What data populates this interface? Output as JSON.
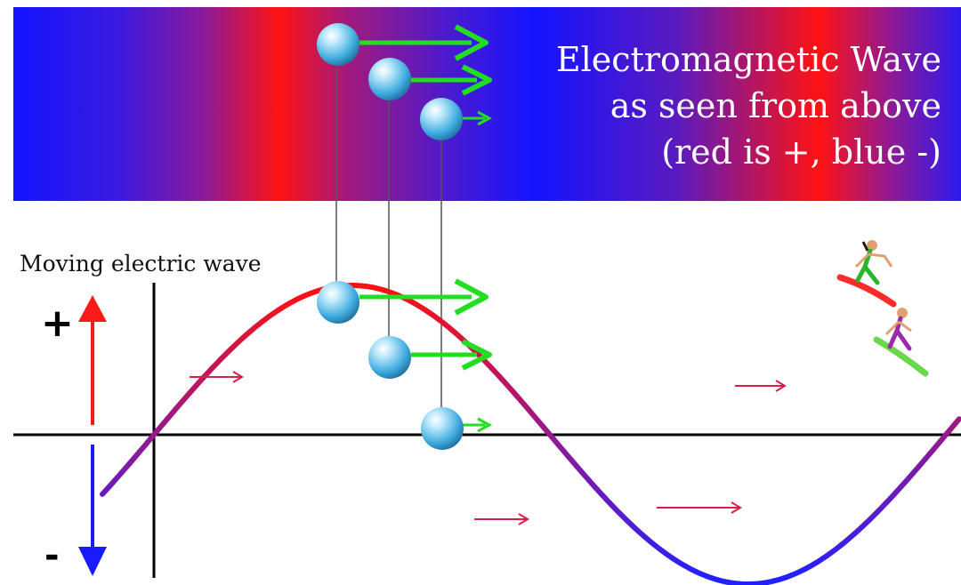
{
  "title": {
    "line1": "Electromagnetic Wave",
    "line2": "as seen from above",
    "line3": "(red is +, blue -)"
  },
  "wave_label": "Moving electric wave",
  "axis_signs": {
    "plus": "+",
    "minus": "-"
  },
  "colors": {
    "positive": "#ff1010",
    "negative": "#1a1aff",
    "band_mid": "#7a1a90",
    "force_arrow": "#22dd22",
    "motion_arrow": "#d81e4a",
    "particle": "#4fb8e0",
    "axis": "#000000"
  },
  "icons": [
    "particle-sphere-icon",
    "surfer-icon",
    "arrow-right-icon",
    "arrow-up-icon",
    "arrow-down-icon"
  ]
}
